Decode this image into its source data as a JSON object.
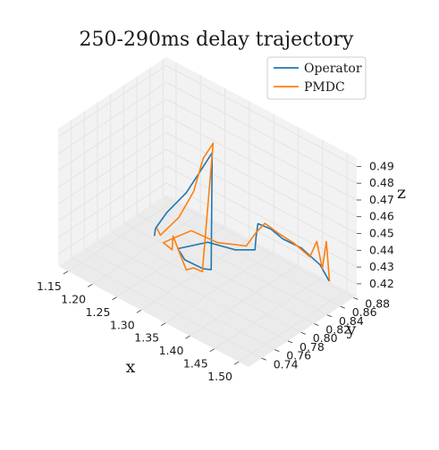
{
  "chart_data": {
    "type": "line",
    "projection": "3d",
    "title": "250-290ms delay trajectory",
    "xlabel": "x",
    "ylabel": "y",
    "zlabel": "z",
    "xlim": [
      1.13,
      1.52
    ],
    "ylim": [
      0.72,
      0.885
    ],
    "zlim": [
      0.413,
      0.495
    ],
    "xticks": [
      "1.15",
      "1.20",
      "1.25",
      "1.30",
      "1.35",
      "1.40",
      "1.45",
      "1.50"
    ],
    "yticks": [
      "0.74",
      "0.76",
      "0.78",
      "0.80",
      "0.82",
      "0.84",
      "0.86",
      "0.88"
    ],
    "zticks": [
      "0.42",
      "0.43",
      "0.44",
      "0.45",
      "0.46",
      "0.47",
      "0.48",
      "0.49"
    ],
    "grid": true,
    "legend_position": "top-right",
    "series": [
      {
        "name": "Operator",
        "color": "#1f77b4",
        "points": [
          {
            "x": 1.22,
            "y": 0.8,
            "z": 0.4245
          },
          {
            "x": 1.222,
            "y": 0.8,
            "z": 0.429
          },
          {
            "x": 1.245,
            "y": 0.8,
            "z": 0.442
          },
          {
            "x": 1.285,
            "y": 0.8,
            "z": 0.46
          },
          {
            "x": 1.315,
            "y": 0.8,
            "z": 0.478
          },
          {
            "x": 1.338,
            "y": 0.8,
            "z": 0.492
          },
          {
            "x": 1.336,
            "y": 0.8,
            "z": 0.422
          },
          {
            "x": 1.32,
            "y": 0.8,
            "z": 0.42
          },
          {
            "x": 1.282,
            "y": 0.8,
            "z": 0.4195
          },
          {
            "x": 1.268,
            "y": 0.8,
            "z": 0.424
          },
          {
            "x": 1.282,
            "y": 0.835,
            "z": 0.421
          },
          {
            "x": 1.325,
            "y": 0.845,
            "z": 0.4205
          },
          {
            "x": 1.356,
            "y": 0.852,
            "z": 0.4235
          },
          {
            "x": 1.358,
            "y": 0.852,
            "z": 0.431
          },
          {
            "x": 1.362,
            "y": 0.852,
            "z": 0.44
          },
          {
            "x": 1.383,
            "y": 0.856,
            "z": 0.439
          },
          {
            "x": 1.405,
            "y": 0.858,
            "z": 0.436
          },
          {
            "x": 1.44,
            "y": 0.86,
            "z": 0.4355
          },
          {
            "x": 1.472,
            "y": 0.865,
            "z": 0.429
          },
          {
            "x": 1.487,
            "y": 0.867,
            "z": 0.4215
          }
        ]
      },
      {
        "name": "PMDC",
        "color": "#ff7f0e",
        "points": [
          {
            "x": 1.225,
            "y": 0.8,
            "z": 0.4295
          },
          {
            "x": 1.232,
            "y": 0.8,
            "z": 0.4265
          },
          {
            "x": 1.27,
            "y": 0.8,
            "z": 0.443
          },
          {
            "x": 1.3,
            "y": 0.8,
            "z": 0.463
          },
          {
            "x": 1.32,
            "y": 0.8,
            "z": 0.486
          },
          {
            "x": 1.34,
            "y": 0.8,
            "z": 0.498
          },
          {
            "x": 1.318,
            "y": 0.8,
            "z": 0.418
          },
          {
            "x": 1.3,
            "y": 0.8,
            "z": 0.4175
          },
          {
            "x": 1.285,
            "y": 0.8,
            "z": 0.414
          },
          {
            "x": 1.258,
            "y": 0.8,
            "z": 0.43
          },
          {
            "x": 1.256,
            "y": 0.8,
            "z": 0.4215
          },
          {
            "x": 1.238,
            "y": 0.8,
            "z": 0.423
          },
          {
            "x": 1.255,
            "y": 0.83,
            "z": 0.425
          },
          {
            "x": 1.295,
            "y": 0.84,
            "z": 0.4215
          },
          {
            "x": 1.338,
            "y": 0.852,
            "z": 0.423
          },
          {
            "x": 1.358,
            "y": 0.852,
            "z": 0.434
          },
          {
            "x": 1.372,
            "y": 0.855,
            "z": 0.441
          },
          {
            "x": 1.395,
            "y": 0.858,
            "z": 0.438
          },
          {
            "x": 1.425,
            "y": 0.86,
            "z": 0.436
          },
          {
            "x": 1.455,
            "y": 0.862,
            "z": 0.432
          },
          {
            "x": 1.465,
            "y": 0.865,
            "z": 0.442
          },
          {
            "x": 1.475,
            "y": 0.866,
            "z": 0.427
          },
          {
            "x": 1.482,
            "y": 0.867,
            "z": 0.444
          },
          {
            "x": 1.487,
            "y": 0.868,
            "z": 0.421
          }
        ]
      }
    ]
  }
}
